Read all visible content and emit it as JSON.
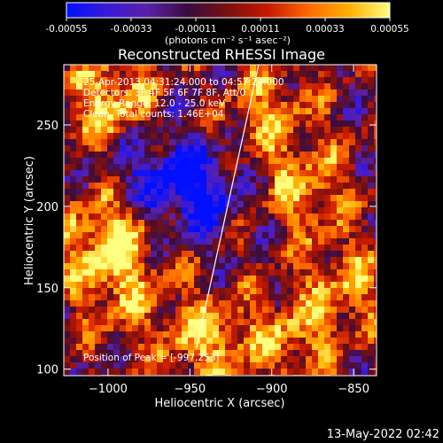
{
  "colorbar": {
    "ticks": [
      "-0.00055",
      "-0.00033",
      "-0.00011",
      "0.00011",
      "0.00033",
      "0.00055"
    ],
    "units": "(photons cm⁻² s⁻¹ asec⁻²)",
    "colormap": [
      "#0010ff",
      "#3a1ad8",
      "#5a20a8",
      "#3a0c40",
      "#7a1010",
      "#c81a00",
      "#ff6a00",
      "#ffb000",
      "#ffff80"
    ]
  },
  "plot": {
    "title": "Reconstructed RHESSI Image",
    "info_lines": [
      "25-Apr-2013 04:31:24.000 to 04:57:24.000",
      "Detectors: 3F 4F 5F 6F 7F 8F, Att/0",
      "Energy Range: 12.0 - 25.0 keV",
      "Clean.  Total counts: 1.46E+04"
    ],
    "peak_text": "Position of Peak = [-997,253]",
    "timestamp": "13-May-2022 02:42"
  },
  "chart_data": {
    "type": "heatmap",
    "title": "Reconstructed RHESSI Image",
    "xlabel": "Heliocentric X (arcsec)",
    "ylabel": "Heliocentric Y (arcsec)",
    "xlim": [
      -1027,
      -836
    ],
    "ylim": [
      96,
      287
    ],
    "x_ticks": [
      {
        "value": -1000,
        "label": "−1000"
      },
      {
        "value": -950,
        "label": "−950"
      },
      {
        "value": -900,
        "label": "−900"
      },
      {
        "value": -850,
        "label": "−850"
      }
    ],
    "y_ticks": [
      {
        "value": 100,
        "label": "100"
      },
      {
        "value": 150,
        "label": "150"
      },
      {
        "value": 200,
        "label": "200"
      },
      {
        "value": 250,
        "label": "250"
      }
    ],
    "limb_line": [
      [
        -946,
        113
      ],
      [
        -908,
        287
      ]
    ],
    "peak": [
      -997,
      253
    ],
    "colorbar_range": [
      -0.00055,
      0.00055
    ]
  }
}
